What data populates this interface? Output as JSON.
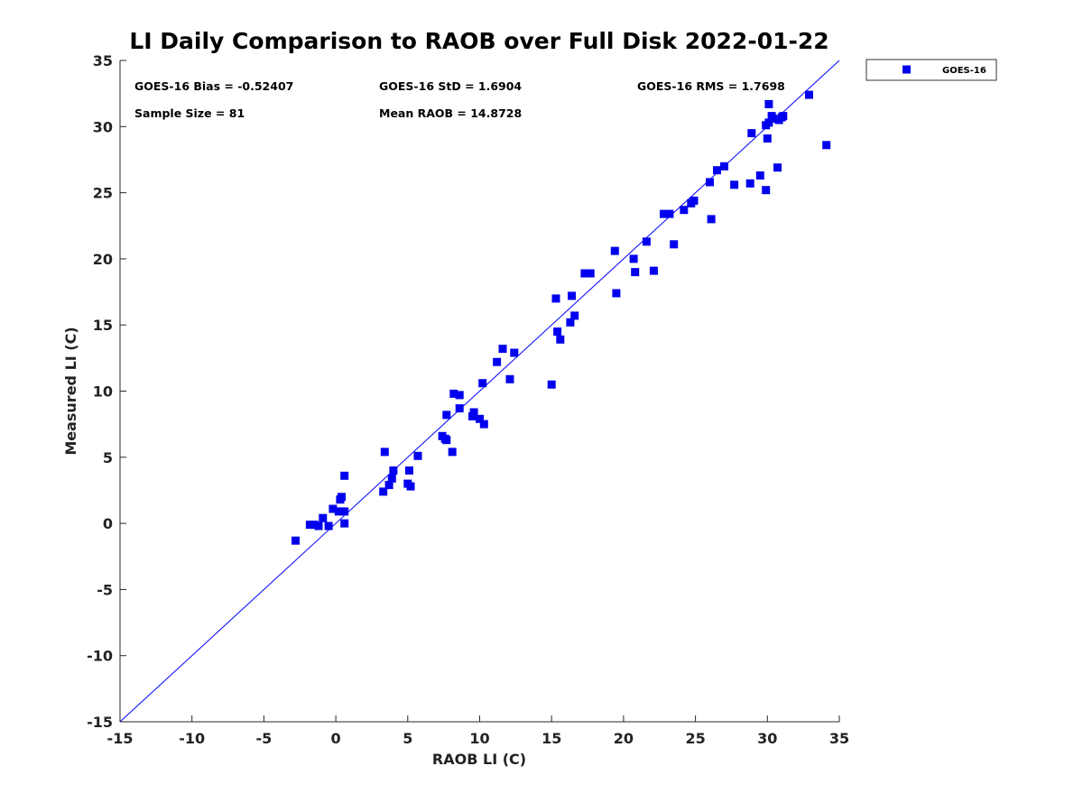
{
  "chart_data": {
    "type": "scatter",
    "title": "LI Daily Comparison to RAOB over Full Disk 2022-01-22",
    "xlabel": "RAOB LI (C)",
    "ylabel": "Measured LI (C)",
    "xlim": [
      -15,
      35
    ],
    "ylim": [
      -15,
      35
    ],
    "xticks": [
      -15,
      -10,
      -5,
      0,
      5,
      10,
      15,
      20,
      25,
      30,
      35
    ],
    "yticks": [
      -15,
      -10,
      -5,
      0,
      5,
      10,
      15,
      20,
      25,
      30,
      35
    ],
    "xtick_labels": [
      "-15",
      "-10",
      "-5",
      "0",
      "5",
      "10",
      "15",
      "20",
      "25",
      "30",
      "35"
    ],
    "ytick_labels": [
      "-15",
      "-10",
      "-5",
      "0",
      "5",
      "10",
      "15",
      "20",
      "25",
      "30",
      "35"
    ],
    "reference_line": {
      "type": "one-to-one",
      "color": "#0000ff"
    },
    "legend": {
      "position": "outside-top-right",
      "entries": [
        "GOES-16"
      ]
    },
    "stats": [
      "GOES-16 Bias = -0.52407",
      "GOES-16 StD = 1.6904",
      "GOES-16 RMS = 1.7698",
      "Sample Size = 81",
      "Mean RAOB = 14.8728"
    ],
    "series": [
      {
        "name": "GOES-16",
        "color": "#0000ee",
        "marker": "square",
        "x": [
          -2.8,
          -1.8,
          -1.5,
          -1.2,
          -0.9,
          -0.5,
          -0.2,
          0.2,
          0.3,
          0.4,
          0.6,
          0.6,
          0.6,
          3.4,
          3.3,
          3.7,
          3.9,
          4.0,
          5.0,
          5.1,
          5.2,
          5.7,
          7.4,
          7.6,
          7.7,
          7.7,
          8.1,
          8.2,
          8.6,
          8.6,
          9.5,
          9.6,
          10.0,
          10.2,
          10.3,
          11.2,
          11.6,
          12.1,
          12.4,
          15.0,
          15.3,
          15.4,
          15.6,
          16.3,
          16.4,
          16.6,
          17.3,
          17.7,
          19.4,
          19.5,
          20.7,
          20.8,
          21.6,
          22.1,
          22.8,
          23.2,
          23.5,
          24.2,
          24.7,
          24.9,
          26.0,
          26.1,
          26.5,
          27.0,
          27.7,
          28.8,
          28.9,
          29.5,
          29.9,
          29.9,
          30.0,
          30.1,
          30.3,
          30.4,
          30.8,
          31.0,
          30.7,
          32.9,
          34.1,
          30.1,
          31.1
        ],
        "y": [
          -1.3,
          -0.1,
          -0.1,
          -0.2,
          0.4,
          -0.2,
          1.1,
          0.9,
          1.8,
          2.0,
          0.9,
          3.6,
          0.0,
          5.4,
          2.4,
          2.9,
          3.4,
          4.0,
          3.0,
          4.0,
          2.8,
          5.1,
          6.6,
          6.4,
          6.3,
          8.2,
          5.4,
          9.8,
          9.7,
          8.7,
          8.1,
          8.4,
          7.9,
          10.6,
          7.5,
          12.2,
          13.2,
          10.9,
          12.9,
          10.5,
          17.0,
          14.5,
          13.9,
          15.2,
          17.2,
          15.7,
          18.9,
          18.9,
          20.6,
          17.4,
          20.0,
          19.0,
          21.3,
          19.1,
          23.4,
          23.4,
          21.1,
          23.7,
          24.2,
          24.4,
          25.8,
          23.0,
          26.7,
          27.0,
          25.6,
          25.7,
          29.5,
          26.3,
          25.2,
          30.1,
          29.1,
          31.7,
          30.8,
          30.6,
          30.5,
          30.7,
          26.9,
          32.4,
          28.6,
          30.3,
          30.8
        ]
      }
    ]
  }
}
